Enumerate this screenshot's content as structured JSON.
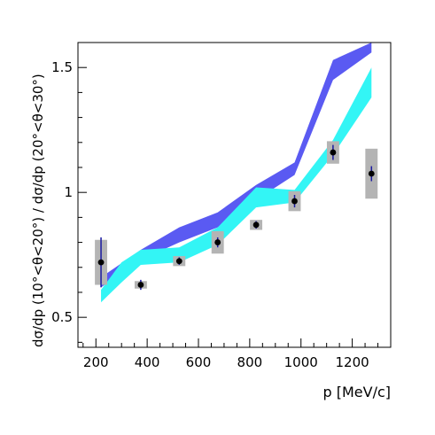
{
  "chart_data": {
    "type": "line",
    "title": "",
    "xlabel": "p [MeV/c]",
    "ylabel": "dσ/dp (10°<θ<20°) / dσ/dp (20°<θ<30°)",
    "xlim": [
      130,
      1350
    ],
    "ylim": [
      0.38,
      1.6
    ],
    "xticks": [
      200,
      400,
      600,
      800,
      1000,
      1200
    ],
    "xtick_labels": [
      "200",
      "400",
      "600",
      "800",
      "1000",
      "1200"
    ],
    "yticks": [
      0.5,
      1,
      1.5
    ],
    "ytick_labels": [
      "0.5",
      "1",
      "1.5"
    ],
    "grid": false,
    "legend": "none",
    "bands": [
      {
        "color": "#5a5af2",
        "x": [
          220,
          375,
          525,
          675,
          825,
          975,
          1125,
          1275
        ],
        "lower": [
          0.62,
          0.73,
          0.8,
          0.86,
          0.97,
          1.07,
          1.45,
          1.56
        ],
        "upper": [
          0.66,
          0.77,
          0.86,
          0.92,
          1.03,
          1.12,
          1.53,
          1.6
        ]
      },
      {
        "color": "#33f5f5",
        "x": [
          220,
          300,
          375,
          525,
          675,
          825,
          975,
          1125,
          1275
        ],
        "lower": [
          0.56,
          0.64,
          0.71,
          0.72,
          0.79,
          0.94,
          0.96,
          1.15,
          1.38
        ],
        "upper": [
          0.61,
          0.72,
          0.77,
          0.78,
          0.86,
          1.02,
          1.01,
          1.21,
          1.5
        ]
      }
    ],
    "points": {
      "x": [
        220,
        375,
        525,
        675,
        825,
        975,
        1125,
        1275
      ],
      "y": [
        0.72,
        0.63,
        0.725,
        0.8,
        0.87,
        0.965,
        1.16,
        1.075
      ],
      "stat": [
        0.1,
        0.02,
        0.015,
        0.02,
        0.015,
        0.025,
        0.03,
        0.03
      ],
      "sys": [
        0.09,
        0.015,
        0.02,
        0.045,
        0.02,
        0.04,
        0.045,
        0.1
      ],
      "sys_halfwidth": 24
    }
  }
}
